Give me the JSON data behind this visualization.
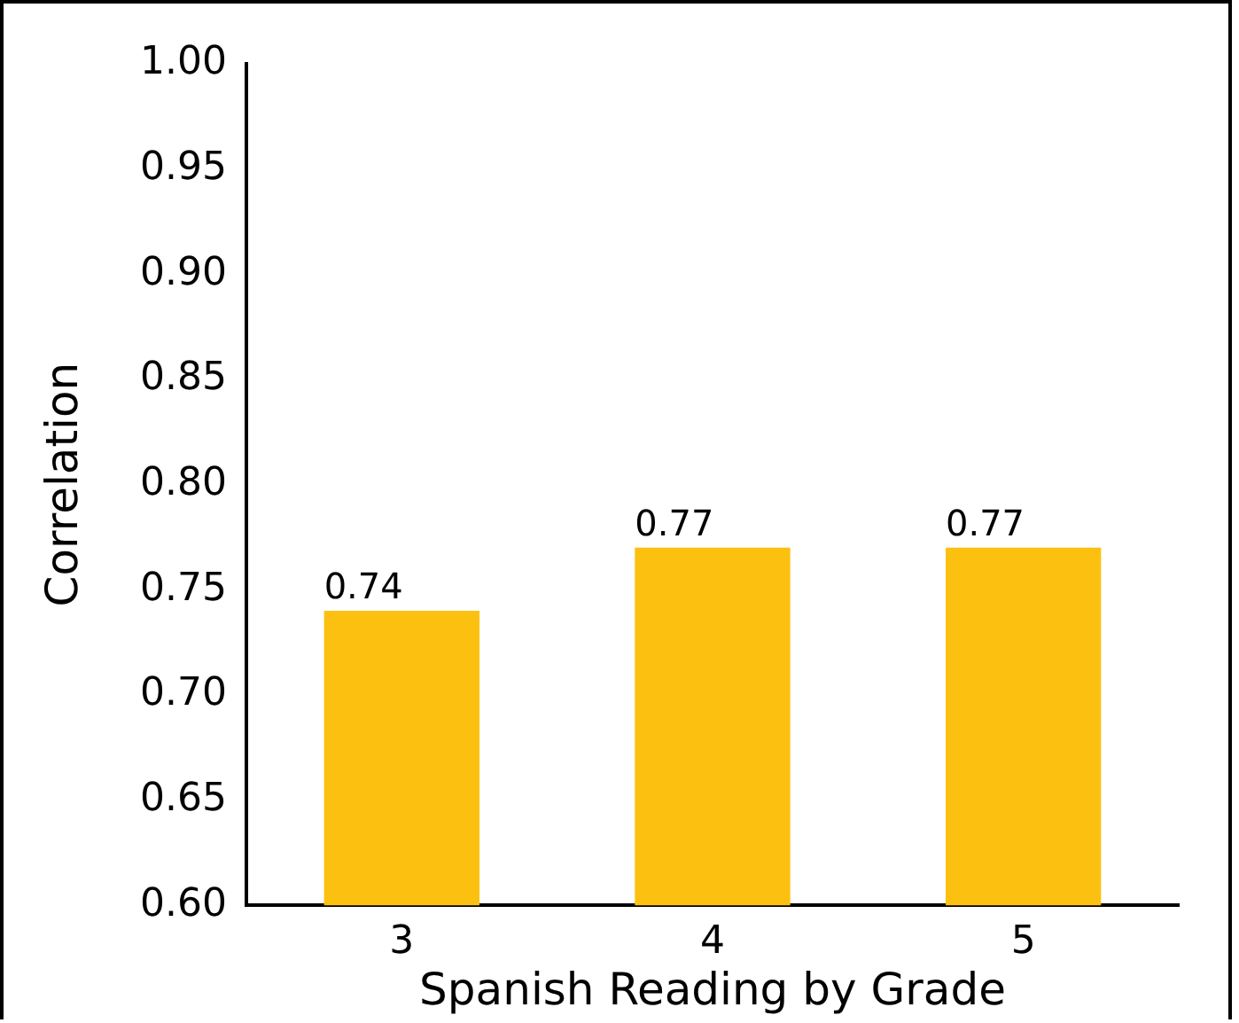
{
  "chart_data": {
    "type": "bar",
    "xlabel": "Spanish Reading by Grade",
    "ylabel": "Correlation",
    "categories": [
      "3",
      "4",
      "5"
    ],
    "values": [
      0.74,
      0.77,
      0.77
    ],
    "color": "#fcc010",
    "ylim": [
      0.6,
      1.0
    ],
    "yticks": [
      {
        "value": 0.6,
        "label": "0.60"
      },
      {
        "value": 0.65,
        "label": "0.65"
      },
      {
        "value": 0.7,
        "label": "0.70"
      },
      {
        "value": 0.75,
        "label": "0.75"
      },
      {
        "value": 0.8,
        "label": "0.80"
      },
      {
        "value": 0.85,
        "label": "0.85"
      },
      {
        "value": 0.9,
        "label": "0.90"
      },
      {
        "value": 0.95,
        "label": "0.95"
      },
      {
        "value": 1.0,
        "label": "1.00"
      }
    ],
    "data_labels": true,
    "grid": false,
    "legend": false
  }
}
